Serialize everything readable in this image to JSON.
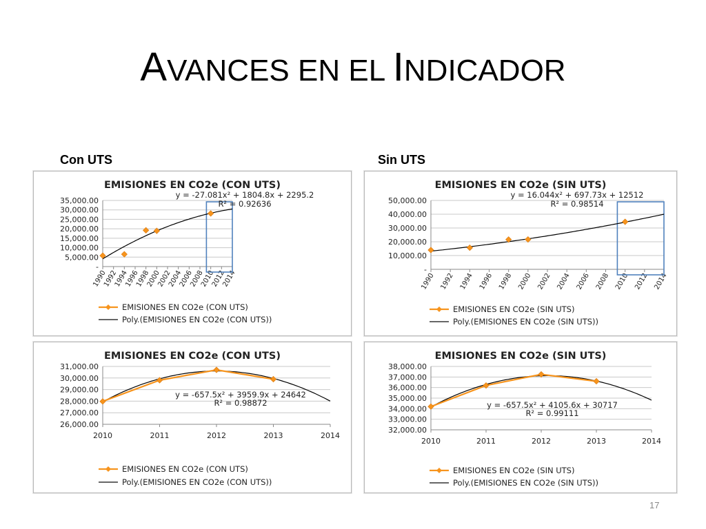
{
  "slide": {
    "title_parts": [
      {
        "text": "A",
        "size": "big"
      },
      {
        "text": "VANCES EN EL ",
        "size": "small"
      },
      {
        "text": "I",
        "size": "big"
      },
      {
        "text": "NDICADOR",
        "size": "small"
      }
    ],
    "label_left": "Con UTS",
    "label_right": "Sin UTS",
    "page_number": "17"
  },
  "colors": {
    "series": "#f7941d",
    "trend": "#000000",
    "highlight": "#4f81bd",
    "grid": "#c8c8c8"
  },
  "chart_data": [
    {
      "id": "con-uts-full",
      "type": "scatter",
      "title": "EMISIONES EN CO2e (CON UTS)",
      "equation": "y = -27.081x² + 1804.8x + 2295.2",
      "r2": "R² = 0.92636",
      "x_tick_labels": [
        "1990",
        "1992",
        "1994",
        "1996",
        "1998",
        "2000",
        "2002",
        "2004",
        "2006",
        "2008",
        "2010",
        "2012",
        "2014"
      ],
      "xlim": [
        1990,
        2014
      ],
      "y_tick_labels": [
        "-",
        "5,000.00",
        "10,000.00",
        "15,000.00",
        "20,000.00",
        "25,000.00",
        "30,000.00",
        "35,000.00"
      ],
      "y_tick_values": [
        0,
        5000,
        10000,
        15000,
        20000,
        25000,
        30000,
        35000
      ],
      "ylim": [
        0,
        35000
      ],
      "series": [
        {
          "name": "EMISIONES EN CO2e (CON UTS)",
          "x": [
            1990,
            1994,
            1998,
            2000,
            2010
          ],
          "y": [
            5800,
            6500,
            19200,
            18900,
            28100
          ]
        }
      ],
      "trendline": {
        "name": "Poly.(EMISIONES EN CO2e (CON UTS))",
        "kind": "poly2",
        "coef": [
          -27.081,
          1804.8,
          2295.2
        ],
        "x_offset": 1989,
        "x_range": [
          1990,
          2014
        ]
      },
      "highlight_range": [
        2009.2,
        2014
      ],
      "grid": true,
      "legend": "bottom"
    },
    {
      "id": "sin-uts-full",
      "type": "scatter",
      "title": "EMISIONES EN CO2e (SIN UTS)",
      "equation": "y = 16.044x² + 697.73x + 12512",
      "r2": "R² = 0.98514",
      "x_tick_labels": [
        "1990",
        "1992",
        "1994",
        "1996",
        "1998",
        "2000",
        "2002",
        "2004",
        "2006",
        "2008",
        "2010",
        "2012",
        "2014"
      ],
      "xlim": [
        1990,
        2014
      ],
      "y_tick_labels": [
        "-",
        "10,000.00",
        "20,000.00",
        "30,000.00",
        "40,000.00",
        "50,000.00"
      ],
      "y_tick_values": [
        0,
        10000,
        20000,
        30000,
        40000,
        50000
      ],
      "ylim": [
        0,
        50000
      ],
      "series": [
        {
          "name": "EMISIONES EN CO2e (SIN UTS)",
          "x": [
            1990,
            1994,
            1998,
            2000,
            2010
          ],
          "y": [
            14000,
            15700,
            21600,
            21700,
            34500
          ]
        }
      ],
      "trendline": {
        "name": "Poly.(EMISIONES EN CO2e (SIN UTS))",
        "kind": "poly2",
        "coef": [
          16.044,
          697.73,
          12512
        ],
        "x_offset": 1989,
        "x_range": [
          1990,
          2014
        ]
      },
      "highlight_range": [
        2009.2,
        2014
      ],
      "grid": true,
      "legend": "bottom"
    },
    {
      "id": "con-uts-zoom",
      "type": "line",
      "title": "EMISIONES EN CO2e (CON UTS)",
      "equation": "y = -657.5x² + 3959.9x + 24642",
      "r2": "R² = 0.98872",
      "x_tick_labels": [
        "2010",
        "2011",
        "2012",
        "2013",
        "2014"
      ],
      "xlim": [
        2010,
        2014
      ],
      "y_tick_labels": [
        "26,000.00",
        "27,000.00",
        "28,000.00",
        "29,000.00",
        "30,000.00",
        "31,000.00"
      ],
      "y_tick_values": [
        26000,
        27000,
        28000,
        29000,
        30000,
        31000
      ],
      "ylim": [
        26000,
        31000
      ],
      "series": [
        {
          "name": "EMISIONES EN CO2e (CON UTS)",
          "x": [
            2010,
            2011,
            2012,
            2013
          ],
          "y": [
            27980,
            29810,
            30700,
            29900
          ]
        }
      ],
      "trendline": {
        "name": "Poly.(EMISIONES EN CO2e (CON UTS))",
        "kind": "poly2",
        "coef": [
          -657.5,
          3959.9,
          24642
        ],
        "x_offset": 2009,
        "x_range": [
          2010,
          2014
        ]
      },
      "grid": true,
      "legend": "bottom"
    },
    {
      "id": "sin-uts-zoom",
      "type": "line",
      "title": "EMISIONES EN CO2e (SIN UTS)",
      "equation": "y = -657.5x² + 4105.6x + 30717",
      "r2": "R² = 0.99111",
      "x_tick_labels": [
        "2010",
        "2011",
        "2012",
        "2013",
        "2014"
      ],
      "xlim": [
        2010,
        2014
      ],
      "y_tick_labels": [
        "32,000.00",
        "33,000.00",
        "34,000.00",
        "35,000.00",
        "36,000.00",
        "37,000.00",
        "38,000.00"
      ],
      "y_tick_values": [
        32000,
        33000,
        34000,
        35000,
        36000,
        37000,
        38000
      ],
      "ylim": [
        32000,
        38000
      ],
      "series": [
        {
          "name": "EMISIONES EN CO2e (SIN UTS)",
          "x": [
            2010,
            2011,
            2012,
            2013
          ],
          "y": [
            34200,
            36200,
            37250,
            36600
          ]
        }
      ],
      "trendline": {
        "name": "Poly.(EMISIONES EN CO2e (SIN UTS))",
        "kind": "poly2",
        "coef": [
          -657.5,
          4105.6,
          30717
        ],
        "x_offset": 2009,
        "x_range": [
          2010,
          2014
        ]
      },
      "grid": true,
      "legend": "bottom"
    }
  ]
}
